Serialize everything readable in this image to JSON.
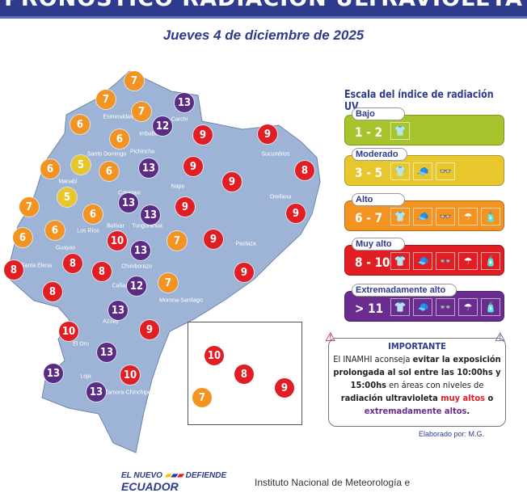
{
  "header": {
    "title": "PRONÓSTICO RADIACIÓN ULTRAVIOLETA",
    "date": "Jueves 4 de diciembre de 2025"
  },
  "colors": {
    "low": "#a6c52c",
    "moderate": "#e8c72d",
    "high": "#f39322",
    "very_high": "#e01e24",
    "extreme": "#5b2c83",
    "map": "#9db4d6",
    "brand": "#2e3a8c"
  },
  "provinces": [
    "Esmeraldas",
    "Carchi",
    "Imbabura",
    "Santo Domingo",
    "Pichincha",
    "Sucumbíos",
    "Napo",
    "Orellana",
    "Manabí",
    "Cotopaxi",
    "Tungurahua",
    "Bolívar",
    "Los Ríos",
    "Pastaza",
    "Guayas",
    "Santa Elena",
    "Chimborazo",
    "Cañar",
    "Morona-Santiago",
    "Azuay",
    "El Oro",
    "Loja",
    "Zamora-Chinchipe"
  ],
  "markers": [
    {
      "value": "7",
      "level": "high"
    },
    {
      "value": "7",
      "level": "high"
    },
    {
      "value": "7",
      "level": "high"
    },
    {
      "value": "6",
      "level": "high"
    },
    {
      "value": "13",
      "level": "extreme"
    },
    {
      "value": "12",
      "level": "extreme"
    },
    {
      "value": "6",
      "level": "high"
    },
    {
      "value": "5",
      "level": "moderate"
    },
    {
      "value": "6",
      "level": "high"
    },
    {
      "value": "6",
      "level": "high"
    },
    {
      "value": "13",
      "level": "extreme"
    },
    {
      "value": "9",
      "level": "very_high"
    },
    {
      "value": "9",
      "level": "very_high"
    },
    {
      "value": "9",
      "level": "very_high"
    },
    {
      "value": "8",
      "level": "very_high"
    },
    {
      "value": "9",
      "level": "very_high"
    },
    {
      "value": "5",
      "level": "moderate"
    },
    {
      "value": "13",
      "level": "extreme"
    },
    {
      "value": "9",
      "level": "very_high"
    },
    {
      "value": "13",
      "level": "extreme"
    },
    {
      "value": "7",
      "level": "high"
    },
    {
      "value": "6",
      "level": "high"
    },
    {
      "value": "6",
      "level": "high"
    },
    {
      "value": "6",
      "level": "high"
    },
    {
      "value": "9",
      "level": "very_high"
    },
    {
      "value": "9",
      "level": "very_high"
    },
    {
      "value": "10",
      "level": "very_high"
    },
    {
      "value": "13",
      "level": "extreme"
    },
    {
      "value": "7",
      "level": "high"
    },
    {
      "value": "8",
      "level": "very_high"
    },
    {
      "value": "8",
      "level": "very_high"
    },
    {
      "value": "8",
      "level": "very_high"
    },
    {
      "value": "12",
      "level": "extreme"
    },
    {
      "value": "7",
      "level": "high"
    },
    {
      "value": "9",
      "level": "very_high"
    },
    {
      "value": "8",
      "level": "very_high"
    },
    {
      "value": "13",
      "level": "extreme"
    },
    {
      "value": "9",
      "level": "very_high"
    },
    {
      "value": "10",
      "level": "very_high"
    },
    {
      "value": "13",
      "level": "extreme"
    },
    {
      "value": "13",
      "level": "extreme"
    },
    {
      "value": "10",
      "level": "very_high"
    },
    {
      "value": "13",
      "level": "extreme"
    },
    {
      "value": "10",
      "level": "very_high"
    },
    {
      "value": "8",
      "level": "very_high"
    },
    {
      "value": "9",
      "level": "very_high"
    },
    {
      "value": "7",
      "level": "high"
    }
  ],
  "legend": {
    "title": "Escala del índice de radiación UV",
    "levels": [
      {
        "name": "Bajo",
        "range": "1 - 2",
        "color": "#a6c52c",
        "icons": [
          "shirt-icon"
        ]
      },
      {
        "name": "Moderado",
        "range": "3 - 5",
        "color": "#e8c72d",
        "icons": [
          "shirt-icon",
          "cap-icon",
          "sunglasses-icon"
        ]
      },
      {
        "name": "Alto",
        "range": "6 - 7",
        "color": "#f39322",
        "icons": [
          "shirt-icon",
          "cap-icon",
          "sunglasses-icon",
          "umbrella-icon",
          "sunscreen-icon"
        ]
      },
      {
        "name": "Muy alto",
        "range": "8 - 10",
        "color": "#e01e24",
        "icons": [
          "shirt-icon",
          "cap-icon",
          "sunglasses-icon",
          "umbrella-icon",
          "sunscreen-icon"
        ]
      },
      {
        "name": "Extremadamente alto",
        "range": "> 11",
        "color": "#6a2c8e",
        "icons": [
          "shirt-icon",
          "cap-icon",
          "sunglasses-icon",
          "umbrella-icon",
          "sunscreen-icon"
        ]
      }
    ]
  },
  "important": {
    "title": "IMPORTANTE",
    "t1": "El INAMHI aconseja ",
    "t2": "evitar la exposición prolongada al sol entre las 10:00hs y 15:00hs",
    "t3": " en áreas con niveles de ",
    "t4": "radiación ultravioleta ",
    "t5": "muy altos",
    "t6": " o ",
    "t7": "extremadamente altos",
    "t8": "."
  },
  "credit": "Elaborado por: M.G.",
  "footer": {
    "logo_top": "EL NUEVO",
    "logo_main": "ECUADOR",
    "logo_right": "DEFIENDE",
    "institute": "Instituto Nacional de Meteorología e"
  }
}
